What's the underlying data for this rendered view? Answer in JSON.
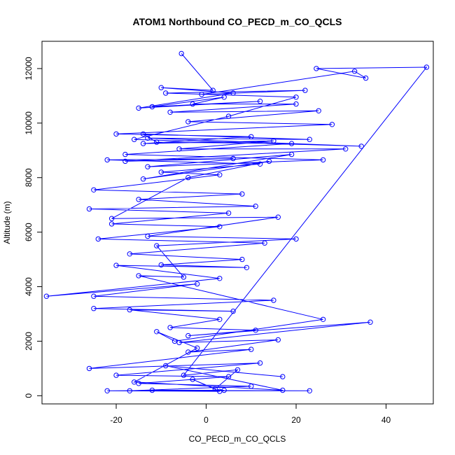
{
  "chart_data": {
    "type": "line",
    "title": "ATOM1 Northbound CO_PECD_m_CO_QCLS",
    "xlabel": "CO_PECD_m_CO_QCLS",
    "ylabel": "Altitude (m)",
    "xlim": [
      -36.5,
      50.5
    ],
    "ylim": [
      -300,
      13000
    ],
    "xticks": [
      -20,
      0,
      20,
      40
    ],
    "yticks": [
      0,
      2000,
      4000,
      6000,
      8000,
      10000,
      12000
    ],
    "grid": false,
    "legend": "none",
    "series": [
      {
        "marker": "open-circle",
        "points": [
          [
            -5.5,
            12550
          ],
          [
            1.5,
            11200
          ],
          [
            -10,
            11300
          ],
          [
            6,
            11100
          ],
          [
            -15,
            10550
          ],
          [
            12,
            10800
          ],
          [
            -12,
            10600
          ],
          [
            4,
            10950
          ],
          [
            -3,
            10700
          ],
          [
            20,
            10700
          ],
          [
            -8,
            10400
          ],
          [
            25,
            10450
          ],
          [
            -4,
            10050
          ],
          [
            28,
            9950
          ],
          [
            -20,
            9600
          ],
          [
            10,
            9500
          ],
          [
            -14,
            9250
          ],
          [
            15,
            9350
          ],
          [
            -6,
            9050
          ],
          [
            31,
            9050
          ],
          [
            -18,
            8600
          ],
          [
            6,
            8700
          ],
          [
            -22,
            8650
          ],
          [
            12,
            8500
          ],
          [
            -10,
            8200
          ],
          [
            3,
            8100
          ],
          [
            -25,
            7550
          ],
          [
            8,
            7400
          ],
          [
            -15,
            7200
          ],
          [
            11,
            6950
          ],
          [
            -26,
            6850
          ],
          [
            5,
            6700
          ],
          [
            -21,
            6300
          ],
          [
            3,
            6200
          ],
          [
            -24,
            5750
          ],
          [
            13,
            5600
          ],
          [
            -17,
            5200
          ],
          [
            8,
            5000
          ],
          [
            -10,
            4800
          ],
          [
            9,
            4700
          ],
          [
            -20,
            4780
          ],
          [
            3,
            4300
          ],
          [
            -35.5,
            3650
          ],
          [
            -2,
            4100
          ],
          [
            -25,
            3650
          ],
          [
            15,
            3500
          ],
          [
            -25,
            3200
          ],
          [
            6,
            3100
          ],
          [
            -17,
            3150
          ],
          [
            3,
            2800
          ],
          [
            -8,
            2500
          ],
          [
            11,
            2400
          ],
          [
            -4,
            2200
          ],
          [
            36.5,
            2700
          ],
          [
            -6,
            1950
          ],
          [
            16,
            2050
          ],
          [
            -4,
            1600
          ],
          [
            10,
            1700
          ],
          [
            -26,
            1000
          ],
          [
            12,
            1200
          ],
          [
            -20,
            750
          ],
          [
            5,
            700
          ],
          [
            -15,
            450
          ],
          [
            10,
            350
          ],
          [
            -17,
            180
          ],
          [
            23,
            180
          ],
          [
            -12,
            200
          ],
          [
            4,
            200
          ],
          [
            -22,
            180
          ],
          [
            3,
            160
          ],
          [
            -3,
            600
          ],
          [
            2,
            250
          ],
          [
            7,
            950
          ],
          [
            -5,
            750
          ],
          [
            49,
            12050
          ],
          [
            24.5,
            12000
          ],
          [
            35.5,
            11650
          ],
          [
            33,
            11900
          ],
          [
            -1,
            11050
          ],
          [
            22,
            11200
          ],
          [
            -9,
            11100
          ],
          [
            20,
            10950
          ],
          [
            5,
            10250
          ],
          [
            -16,
            9400
          ],
          [
            34.5,
            9150
          ],
          [
            -13,
            9450
          ],
          [
            23,
            9400
          ],
          [
            -14,
            9600
          ],
          [
            -11,
            9300
          ],
          [
            19,
            9250
          ],
          [
            -18,
            8850
          ],
          [
            26,
            8650
          ],
          [
            -13,
            8400
          ],
          [
            19,
            8850
          ],
          [
            -14,
            7950
          ],
          [
            14,
            8600
          ],
          [
            -4,
            8000
          ],
          [
            -21,
            6500
          ],
          [
            16,
            6550
          ],
          [
            -13,
            5850
          ],
          [
            20,
            5750
          ],
          [
            -11,
            5500
          ],
          [
            -5,
            4350
          ],
          [
            -15,
            4400
          ],
          [
            26,
            2800
          ],
          [
            -7,
            2000
          ],
          [
            -11,
            2350
          ],
          [
            -2,
            1750
          ],
          [
            -16,
            500
          ],
          [
            17,
            200
          ],
          [
            -9,
            1100
          ],
          [
            17,
            700
          ]
        ]
      }
    ]
  }
}
